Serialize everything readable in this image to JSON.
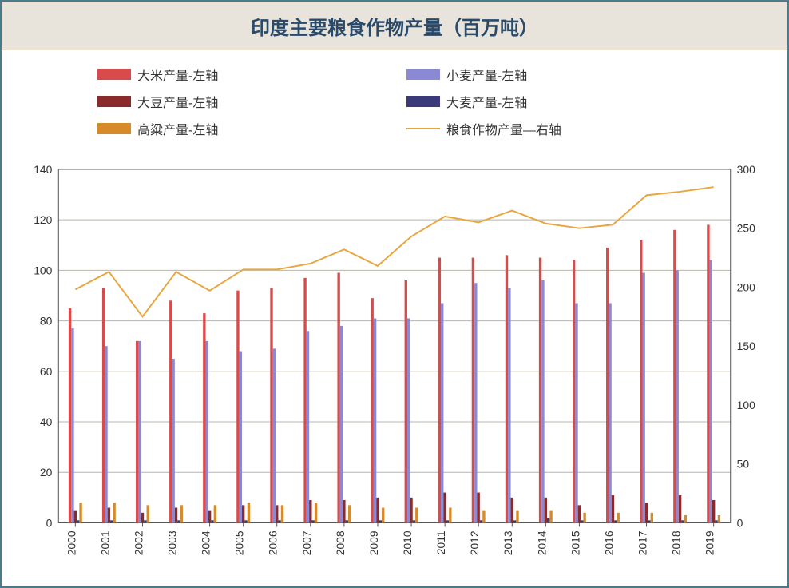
{
  "title": "印度主要粮食作物产量（百万吨）",
  "chart": {
    "type": "bar+line",
    "background_color": "#ffffff",
    "title_bg": "#e8e4dc",
    "title_color": "#2a4a6a",
    "title_fontsize": 24,
    "outer_border_color": "#4a7a8c",
    "categories": [
      "2000",
      "2001",
      "2002",
      "2003",
      "2004",
      "2005",
      "2006",
      "2007",
      "2008",
      "2009",
      "2010",
      "2011",
      "2012",
      "2013",
      "2014",
      "2015",
      "2016",
      "2017",
      "2018",
      "2019"
    ],
    "left_axis": {
      "min": 0,
      "max": 140,
      "tick_step": 20,
      "font_size": 14,
      "color": "#333333"
    },
    "right_axis": {
      "min": 0,
      "max": 300,
      "tick_step": 50,
      "font_size": 14,
      "color": "#333333"
    },
    "x_axis": {
      "font_size": 14,
      "color": "#333333",
      "rotation": -90
    },
    "grid_color": "#b8b4a8",
    "plot_border_color": "#555555",
    "bar_group_gap": 0.15,
    "bar_width": 3.4,
    "series": [
      {
        "key": "rice",
        "name": "大米产量-左轴",
        "type": "bar",
        "axis": "left",
        "color": "#d94a4a",
        "values": [
          85,
          93,
          72,
          88,
          83,
          92,
          93,
          97,
          99,
          89,
          96,
          105,
          105,
          106,
          105,
          104,
          109,
          112,
          116,
          118
        ]
      },
      {
        "key": "wheat",
        "name": "小麦产量-左轴",
        "type": "bar",
        "axis": "left",
        "color": "#8a8ad4",
        "values": [
          77,
          70,
          72,
          65,
          72,
          68,
          69,
          76,
          78,
          81,
          81,
          87,
          95,
          93,
          96,
          87,
          87,
          99,
          100,
          104
        ]
      },
      {
        "key": "soybean",
        "name": "大豆产量-左轴",
        "type": "bar",
        "axis": "left",
        "color": "#8a2a2a",
        "values": [
          5,
          6,
          4,
          6,
          5,
          7,
          7,
          9,
          9,
          10,
          10,
          12,
          12,
          10,
          10,
          7,
          11,
          8,
          11,
          9
        ]
      },
      {
        "key": "barley",
        "name": "大麦产量-左轴",
        "type": "bar",
        "axis": "left",
        "color": "#3a3a7a",
        "values": [
          1,
          1,
          1,
          1,
          1,
          1,
          1,
          1,
          1,
          1,
          1,
          1,
          1,
          1,
          2,
          1,
          1,
          1,
          1,
          1
        ]
      },
      {
        "key": "sorghum",
        "name": "高粱产量-左轴",
        "type": "bar",
        "axis": "left",
        "color": "#d68a2a",
        "values": [
          8,
          8,
          7,
          7,
          7,
          8,
          7,
          8,
          7,
          6,
          6,
          6,
          5,
          5,
          5,
          4,
          4,
          4,
          3,
          3
        ]
      },
      {
        "key": "total",
        "name": "粮食作物产量—右轴",
        "type": "line",
        "axis": "right",
        "color": "#e8a640",
        "line_width": 2,
        "values": [
          198,
          213,
          175,
          213,
          197,
          215,
          215,
          220,
          232,
          218,
          243,
          260,
          255,
          265,
          254,
          250,
          253,
          278,
          281,
          285
        ]
      }
    ],
    "legend": {
      "font_size": 16,
      "swatch_width": 42,
      "swatch_height": 14,
      "layout": "2-col"
    }
  }
}
